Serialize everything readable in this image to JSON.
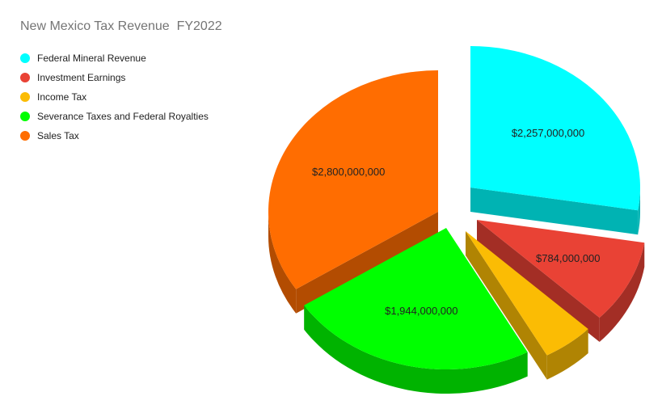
{
  "chart_data": {
    "type": "pie",
    "title": "New Mexico Tax Revenue  FY2022",
    "legend_position": "top-left",
    "three_d": true,
    "exploded": true,
    "slices": [
      {
        "name": "Federal Mineral Revenue",
        "value": 2257000000,
        "label": "$2,257,000,000",
        "color": "#00ffff",
        "side_color": "#00b3b3"
      },
      {
        "name": "Investment Earnings",
        "value": 784000000,
        "label": "$784,000,000",
        "color": "#e94235",
        "side_color": "#a32e25"
      },
      {
        "name": "Income Tax",
        "value": 400000000,
        "label": "",
        "color": "#fbbc04",
        "side_color": "#b08403"
      },
      {
        "name": "Severance Taxes and Federal Royalties",
        "value": 1944000000,
        "label": "$1,944,000,000",
        "color": "#00ff00",
        "side_color": "#00b300"
      },
      {
        "name": "Sales Tax",
        "value": 2800000000,
        "label": "$2,800,000,000",
        "color": "#ff6d01",
        "side_color": "#b34c01"
      }
    ]
  }
}
